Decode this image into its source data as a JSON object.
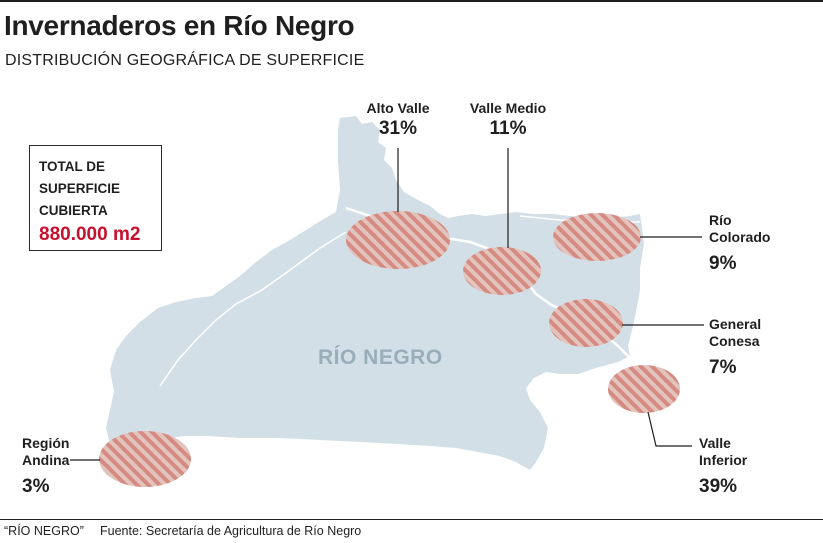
{
  "title": "Invernaderos en Río Negro",
  "subtitle": "DISTRIBUCIÓN GEOGRÁFICA DE SUPERFICIE",
  "total": {
    "label": "TOTAL DE SUPERFICIE CUBIERTA",
    "value": "880.000 m2"
  },
  "map_label": "RÍO NEGRO",
  "colors": {
    "land": "#d3dfe6",
    "hatch_fill": "#e3c4bd",
    "hatch_stripe": "#d58b82",
    "accent_red": "#c8102e",
    "text": "#1f1f1f"
  },
  "regions": [
    {
      "name": "Alto Valle",
      "pct": "31%"
    },
    {
      "name": "Valle Medio",
      "pct": "11%"
    },
    {
      "name": "Río Colorado",
      "pct": "9%"
    },
    {
      "name": "General Conesa",
      "pct": "7%"
    },
    {
      "name": "Valle Inferior",
      "pct": "39%"
    },
    {
      "name": "Región Andina",
      "pct": "3%"
    }
  ],
  "footer": {
    "credit": "“RÍO NEGRO”",
    "source": "Fuente: Secretaría de Agricultura de Río Negro"
  }
}
